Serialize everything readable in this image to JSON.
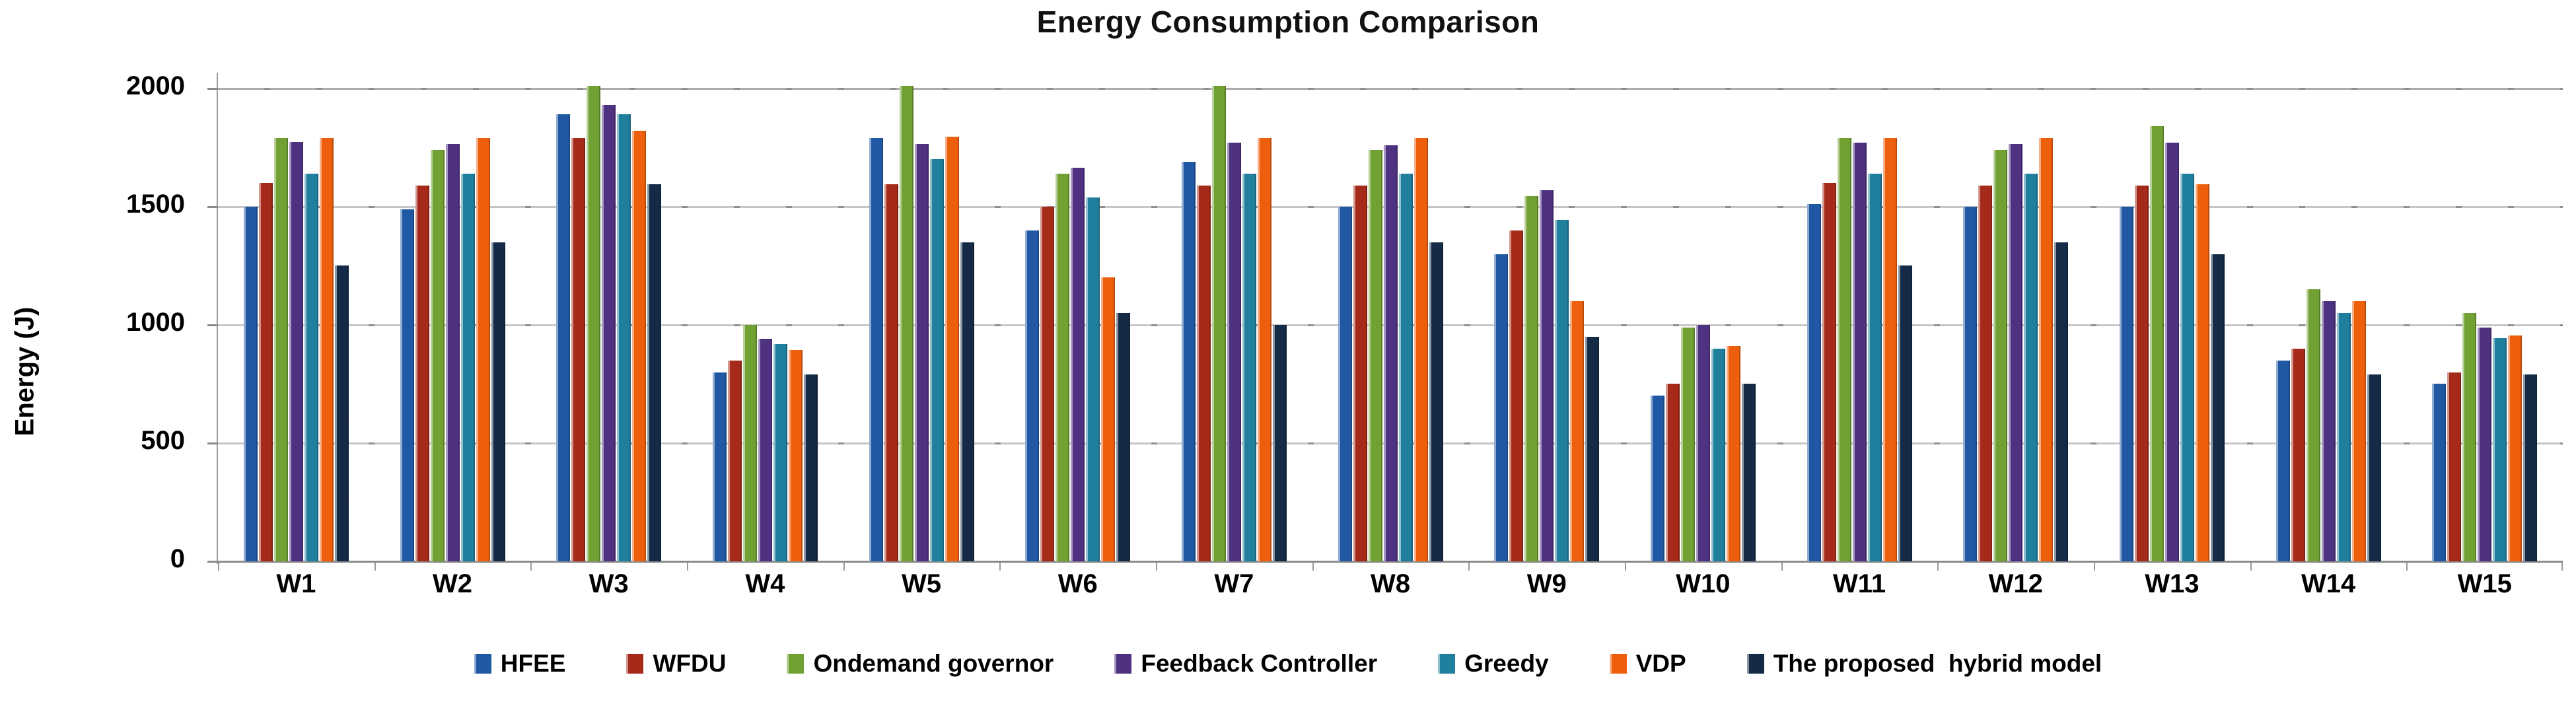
{
  "title": "Energy Consumption Comparison",
  "y_axis": {
    "label": "Energy (J)",
    "ticks": [
      0,
      500,
      1000,
      1500,
      2000
    ]
  },
  "chart_data": {
    "type": "bar",
    "title": "Energy Consumption Comparison",
    "xlabel": "",
    "ylabel": "Energy (J)",
    "ylim": [
      0,
      2050
    ],
    "grid": true,
    "gridline_values": [
      0,
      500,
      1000,
      1500,
      2000
    ],
    "legend_position": "bottom",
    "categories": [
      "W1",
      "W2",
      "W3",
      "W4",
      "W5",
      "W6",
      "W7",
      "W8",
      "W9",
      "W10",
      "W11",
      "W12",
      "W13",
      "W14",
      "W15"
    ],
    "series": [
      {
        "name": "HFEE",
        "color": "#2158A4",
        "values": [
          1500,
          1490,
          1890,
          800,
          1790,
          1400,
          1690,
          1500,
          1300,
          700,
          1510,
          1500,
          1500,
          850,
          750
        ]
      },
      {
        "name": "WFDU",
        "color": "#A52A1A",
        "values": [
          1600,
          1590,
          1790,
          850,
          1595,
          1500,
          1590,
          1590,
          1400,
          750,
          1600,
          1590,
          1590,
          900,
          800
        ]
      },
      {
        "name": "Ondemand governor",
        "color": "#71A033",
        "values": [
          1790,
          1740,
          2010,
          1000,
          2010,
          1640,
          2010,
          1740,
          1545,
          990,
          1790,
          1740,
          1840,
          1150,
          1050
        ]
      },
      {
        "name": "Feedback Controller",
        "color": "#4F3182",
        "values": [
          1775,
          1765,
          1930,
          940,
          1765,
          1665,
          1770,
          1760,
          1570,
          1000,
          1770,
          1765,
          1770,
          1100,
          990
        ]
      },
      {
        "name": "Greedy",
        "color": "#217F9E",
        "values": [
          1640,
          1640,
          1890,
          920,
          1700,
          1540,
          1640,
          1640,
          1445,
          900,
          1640,
          1640,
          1640,
          1050,
          945
        ]
      },
      {
        "name": "VDP",
        "color": "#EE5F0D",
        "values": [
          1790,
          1790,
          1820,
          895,
          1795,
          1200,
          1790,
          1790,
          1100,
          910,
          1790,
          1790,
          1595,
          1100,
          955
        ]
      },
      {
        "name": "The proposed  hybrid model",
        "color": "#142A47",
        "values": [
          1250,
          1350,
          1595,
          790,
          1350,
          1050,
          1000,
          1350,
          950,
          750,
          1250,
          1350,
          1300,
          790,
          790
        ]
      }
    ]
  }
}
